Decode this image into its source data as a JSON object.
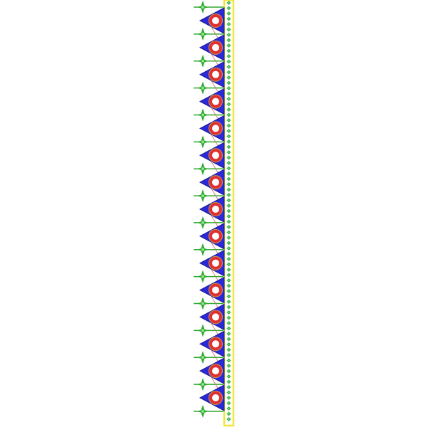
{
  "design": {
    "motif_count": 15,
    "star_count": 16,
    "colors": {
      "background": "#ffffff",
      "triangle": "#2a2ad8",
      "triangle_edge": "#1a1a90",
      "ring": "#e03030",
      "ring_outline": "#c89a50",
      "ring_center": "#ffffff",
      "thread": "#e06060",
      "star": "#2eaa2e",
      "star_light": "#8fe08f",
      "border_edge": "#f2e43a",
      "border_fill": "#ffffff",
      "border_leaf": "#3ab53a"
    }
  }
}
